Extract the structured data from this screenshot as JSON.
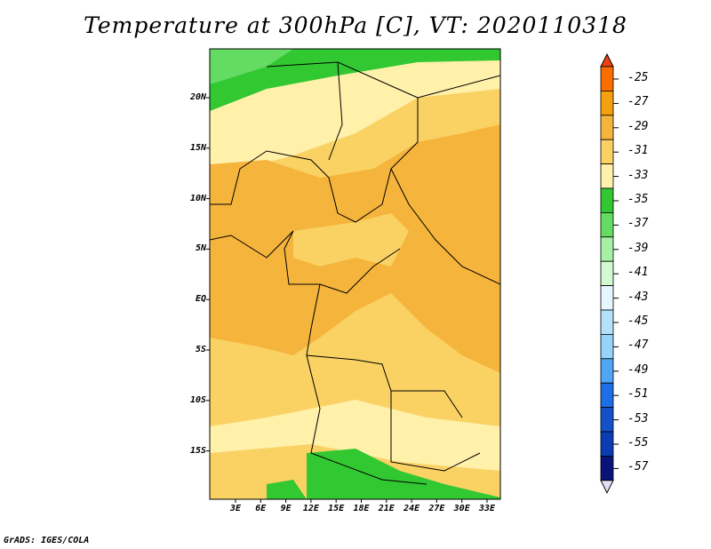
{
  "title": "Temperature at 300hPa [C], VT: 2020110318",
  "credit": "GrADS: IGES/COLA",
  "lat_labels": [
    "20N",
    "15N",
    "10N",
    "5N",
    "EQ",
    "5S",
    "10S",
    "15S"
  ],
  "lon_labels": [
    "3E",
    "6E",
    "9E",
    "12E",
    "15E",
    "18E",
    "21E",
    "24E",
    "27E",
    "30E",
    "33E"
  ],
  "colorbar": {
    "labels": [
      "-25",
      "-27",
      "-29",
      "-31",
      "-33",
      "-35",
      "-37",
      "-39",
      "-41",
      "-43",
      "-45",
      "-47",
      "-49",
      "-51",
      "-53",
      "-55",
      "-57"
    ],
    "colors": [
      "#f04010",
      "#fa6e00",
      "#f5a00f",
      "#f5b43c",
      "#fad264",
      "#fff0aa",
      "#32c832",
      "#64dc64",
      "#a6f0a6",
      "#d2fad2",
      "#e6f6ff",
      "#b4e0fa",
      "#96d2fa",
      "#50a5f5",
      "#1e6ee6",
      "#1450c8",
      "#0a3cb4",
      "#0a1478",
      "#e0e0f5"
    ]
  }
}
